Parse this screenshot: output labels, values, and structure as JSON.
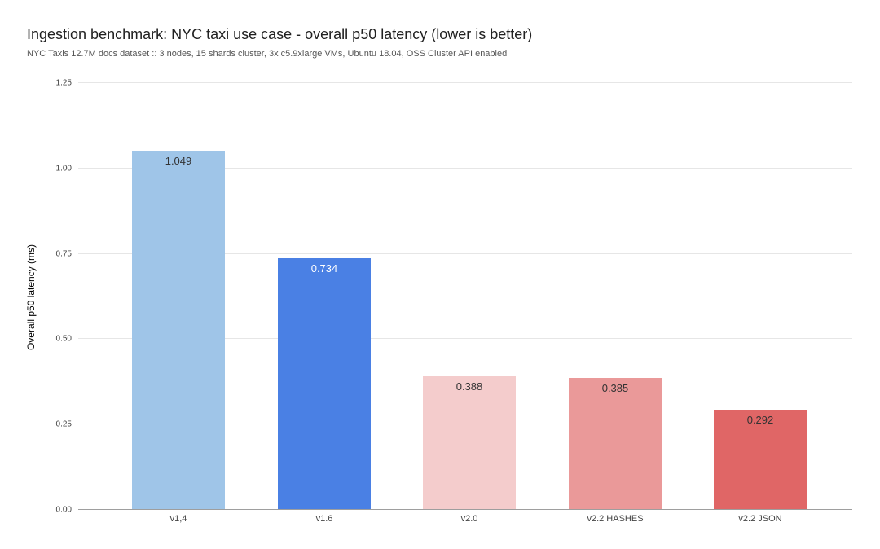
{
  "header": {
    "title": "Ingestion benchmark: NYC taxi use case - overall p50 latency (lower is better)",
    "subtitle": "NYC Taxis 12.7M docs dataset :: 3 nodes, 15 shards cluster, 3x c5.9xlarge VMs, Ubuntu 18.04, OSS Cluster API enabled"
  },
  "chart_data": {
    "type": "bar",
    "title": "Ingestion benchmark: NYC taxi use case - overall p50 latency (lower is better)",
    "subtitle": "NYC Taxis 12.7M docs dataset :: 3 nodes, 15 shards cluster, 3x c5.9xlarge VMs, Ubuntu 18.04, OSS Cluster API enabled",
    "categories": [
      "v1,4",
      "v1.6",
      "v2.0",
      "v2.2 HASHES",
      "v2.2 JSON"
    ],
    "values": [
      1.049,
      0.734,
      0.388,
      0.385,
      0.292
    ],
    "value_labels": [
      "1.049",
      "0.734",
      "0.388",
      "0.385",
      "0.292"
    ],
    "bar_colors": [
      "#9FC5E8",
      "#4A80E4",
      "#F4CCCC",
      "#EA9999",
      "#E06666"
    ],
    "value_label_colors": [
      "#333333",
      "#ffffff",
      "#333333",
      "#333333",
      "#333333"
    ],
    "xlabel": "",
    "ylabel": "Overall p50 latency (ms)",
    "ylim": [
      0,
      1.25
    ],
    "yticks": [
      0,
      0.25,
      0.5,
      0.75,
      1,
      1.25
    ],
    "ytick_labels": [
      "0.00",
      "0.25",
      "0.50",
      "0.75",
      "1.00",
      "1.25"
    ],
    "grid": true,
    "legend_position": "none"
  },
  "colors": {
    "background": "#ffffff",
    "gridline": "#e6e6e6",
    "axis_line": "#9e9e9e",
    "title": "#212121",
    "subtitle": "#555555",
    "tick_label": "#444444"
  }
}
